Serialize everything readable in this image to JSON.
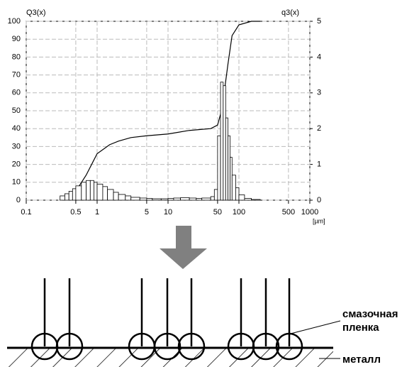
{
  "chart_data": {
    "type": "combo",
    "y_title": "Q3(x)",
    "y2_title": "q3(x)",
    "x_unit": "[µm]",
    "x_scale": "log",
    "xlim": [
      0.1,
      1000
    ],
    "xticks": [
      0.1,
      0.5,
      1,
      5,
      10,
      50,
      100,
      500,
      1000
    ],
    "ylim": [
      0,
      100
    ],
    "yticks": [
      0,
      10,
      20,
      30,
      40,
      50,
      60,
      70,
      80,
      90,
      100
    ],
    "y2lim": [
      0,
      5
    ],
    "y2ticks": [
      0,
      1,
      2,
      3,
      4,
      5
    ],
    "grid": true,
    "series": [
      {
        "type": "line",
        "axis": "y",
        "color": "#000000",
        "x": [
          0.35,
          0.5,
          0.7,
          1,
          1.5,
          2,
          3,
          5,
          10,
          20,
          40,
          50,
          55,
          60,
          70,
          80,
          100,
          150,
          200
        ],
        "values": [
          0,
          5,
          14,
          26,
          31,
          33,
          35,
          36,
          37,
          39,
          40,
          42,
          48,
          56,
          76,
          92,
          98,
          100,
          100
        ]
      },
      {
        "type": "histogram",
        "axis": "y2",
        "color": "#000000",
        "bins": [
          0.3,
          0.35,
          0.4,
          0.45,
          0.5,
          0.6,
          0.7,
          0.8,
          0.9,
          1,
          1.2,
          1.4,
          1.7,
          2,
          2.5,
          3,
          4,
          5,
          6,
          8,
          10,
          12,
          15,
          20,
          25,
          30,
          40,
          45,
          50,
          55,
          60,
          65,
          70,
          75,
          80,
          90,
          100,
          120,
          150,
          200
        ],
        "values": [
          0.12,
          0.18,
          0.25,
          0.32,
          0.4,
          0.5,
          0.55,
          0.55,
          0.5,
          0.45,
          0.38,
          0.3,
          0.22,
          0.16,
          0.12,
          0.08,
          0.06,
          0.05,
          0.04,
          0.04,
          0.05,
          0.06,
          0.07,
          0.06,
          0.05,
          0.06,
          0.1,
          0.3,
          1.8,
          3.3,
          3.2,
          2.3,
          1.8,
          1.2,
          0.7,
          0.35,
          0.15,
          0.05,
          0.02
        ]
      }
    ]
  },
  "diagram": {
    "film_label": [
      "смазочная",
      "пленка"
    ],
    "metal_label": "металл"
  }
}
